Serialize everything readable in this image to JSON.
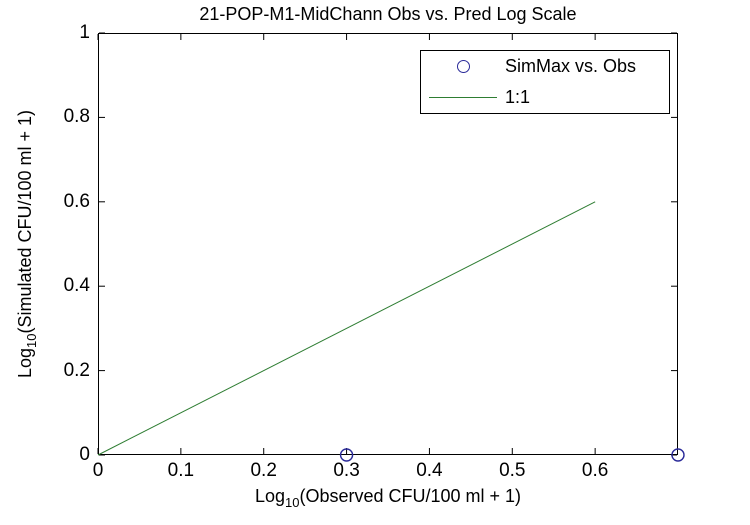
{
  "figure": {
    "background": "#ffffff",
    "axis_color": "#000000",
    "text_color": "#000000"
  },
  "chart_data": {
    "type": "scatter",
    "title": "21-POP-M1-MidChann Obs vs. Pred Log Scale",
    "xlabel": "Log10(Observed CFU/100 ml + 1)",
    "ylabel": "Log10(Simulated CFU/100 ml + 1)",
    "xlabel_parts": {
      "prefix": "Log",
      "sub": "10",
      "rest": "(Observed CFU/100 ml + 1)"
    },
    "ylabel_parts": {
      "prefix": "Log",
      "sub": "10",
      "rest": "(Simulated CFU/100 ml + 1)"
    },
    "xlim": [
      0,
      0.7
    ],
    "ylim": [
      0,
      1
    ],
    "x_ticks": [
      "0",
      "0.1",
      "0.2",
      "0.3",
      "0.4",
      "0.5",
      "0.6"
    ],
    "y_ticks": [
      "0",
      "0.2",
      "0.4",
      "0.6",
      "0.8",
      "1"
    ],
    "grid": false,
    "legend": {
      "position": "top-right",
      "entries": [
        {
          "label": "SimMax vs. Obs",
          "marker": "circle",
          "color": "#2a2a99"
        },
        {
          "label": "1:1",
          "marker": "line",
          "color": "#2e7d32"
        }
      ]
    },
    "series": [
      {
        "name": "SimMax vs. Obs",
        "kind": "scatter",
        "marker": "circle",
        "color": "#2a2a99",
        "marker_radius": 6,
        "points": [
          [
            0.3,
            0
          ],
          [
            0.7,
            0
          ]
        ]
      },
      {
        "name": "1:1",
        "kind": "line",
        "color": "#2e7d32",
        "points": [
          [
            0,
            0
          ],
          [
            0.6,
            0.6
          ]
        ]
      }
    ]
  }
}
